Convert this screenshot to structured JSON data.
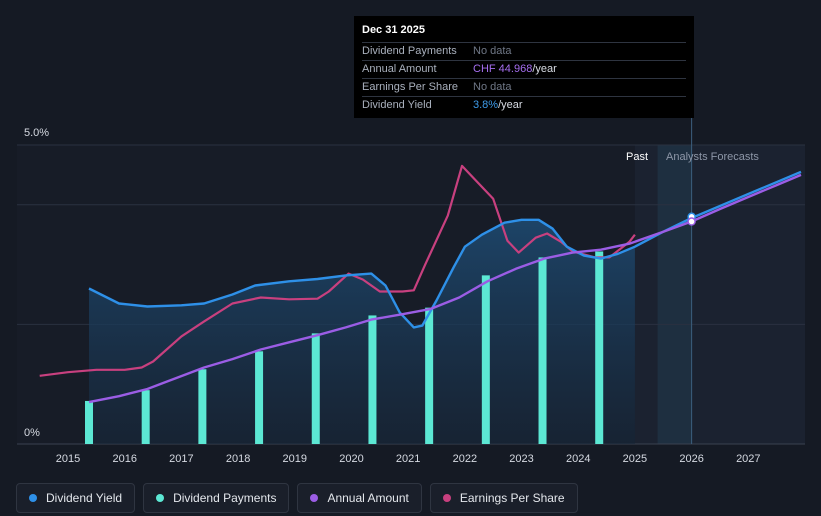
{
  "chart_data": {
    "type": "line",
    "y_top_label": "5.0%",
    "y_bottom_label": "0%",
    "x_ticks": [
      "2015",
      "2016",
      "2017",
      "2018",
      "2019",
      "2020",
      "2021",
      "2022",
      "2023",
      "2024",
      "2025",
      "2026",
      "2027"
    ],
    "past_label": "Past",
    "forecast_label": "Analysts Forecasts",
    "colors": {
      "dividend_yield": "#2e90e8",
      "dividend_payments": "#5ce8d4",
      "annual_amount": "#9b5de5",
      "earnings_per_share": "#c8407f"
    },
    "dividend_yield": [
      [
        2015.37,
        2.6
      ],
      [
        2015.9,
        2.35
      ],
      [
        2016.4,
        2.3
      ],
      [
        2017.0,
        2.32
      ],
      [
        2017.4,
        2.35
      ],
      [
        2017.9,
        2.5
      ],
      [
        2018.3,
        2.65
      ],
      [
        2018.9,
        2.72
      ],
      [
        2019.4,
        2.76
      ],
      [
        2019.9,
        2.82
      ],
      [
        2020.35,
        2.85
      ],
      [
        2020.6,
        2.65
      ],
      [
        2020.85,
        2.2
      ],
      [
        2021.1,
        1.95
      ],
      [
        2021.25,
        1.98
      ],
      [
        2021.5,
        2.4
      ],
      [
        2021.8,
        2.95
      ],
      [
        2022.0,
        3.3
      ],
      [
        2022.3,
        3.5
      ],
      [
        2022.7,
        3.7
      ],
      [
        2023.0,
        3.75
      ],
      [
        2023.3,
        3.75
      ],
      [
        2023.55,
        3.6
      ],
      [
        2023.8,
        3.3
      ],
      [
        2024.1,
        3.15
      ],
      [
        2024.4,
        3.1
      ],
      [
        2024.7,
        3.18
      ],
      [
        2025.0,
        3.3
      ],
      [
        2025.5,
        3.55
      ],
      [
        2026.0,
        3.78
      ],
      [
        2026.5,
        3.98
      ],
      [
        2027.0,
        4.18
      ],
      [
        2027.5,
        4.38
      ],
      [
        2027.93,
        4.55
      ]
    ],
    "dividend_payments": [
      {
        "x": 2015.37,
        "y": 0.72
      },
      {
        "x": 2016.37,
        "y": 0.9
      },
      {
        "x": 2017.37,
        "y": 1.25
      },
      {
        "x": 2018.37,
        "y": 1.55
      },
      {
        "x": 2019.37,
        "y": 1.85
      },
      {
        "x": 2020.37,
        "y": 2.15
      },
      {
        "x": 2021.37,
        "y": 2.28
      },
      {
        "x": 2022.37,
        "y": 2.82
      },
      {
        "x": 2023.37,
        "y": 3.12
      },
      {
        "x": 2024.37,
        "y": 3.22
      }
    ],
    "annual_amount": [
      [
        2015.37,
        0.7
      ],
      [
        2015.9,
        0.8
      ],
      [
        2016.4,
        0.92
      ],
      [
        2016.9,
        1.1
      ],
      [
        2017.4,
        1.28
      ],
      [
        2017.9,
        1.42
      ],
      [
        2018.4,
        1.58
      ],
      [
        2018.9,
        1.7
      ],
      [
        2019.4,
        1.82
      ],
      [
        2019.9,
        1.95
      ],
      [
        2020.35,
        2.08
      ],
      [
        2020.9,
        2.17
      ],
      [
        2021.4,
        2.26
      ],
      [
        2021.9,
        2.45
      ],
      [
        2022.4,
        2.72
      ],
      [
        2022.9,
        2.93
      ],
      [
        2023.4,
        3.1
      ],
      [
        2023.9,
        3.2
      ],
      [
        2024.4,
        3.25
      ],
      [
        2024.9,
        3.35
      ],
      [
        2025.5,
        3.55
      ],
      [
        2026.0,
        3.72
      ],
      [
        2026.5,
        3.93
      ],
      [
        2027.0,
        4.13
      ],
      [
        2027.5,
        4.33
      ],
      [
        2027.93,
        4.5
      ]
    ],
    "earnings_per_share": [
      [
        2014.5,
        1.14
      ],
      [
        2015.0,
        1.2
      ],
      [
        2015.5,
        1.24
      ],
      [
        2016.0,
        1.24
      ],
      [
        2016.3,
        1.28
      ],
      [
        2016.5,
        1.38
      ],
      [
        2017.0,
        1.8
      ],
      [
        2017.4,
        2.05
      ],
      [
        2017.9,
        2.35
      ],
      [
        2018.4,
        2.45
      ],
      [
        2018.9,
        2.42
      ],
      [
        2019.4,
        2.43
      ],
      [
        2019.6,
        2.55
      ],
      [
        2019.95,
        2.85
      ],
      [
        2020.2,
        2.75
      ],
      [
        2020.5,
        2.55
      ],
      [
        2020.9,
        2.55
      ],
      [
        2021.1,
        2.57
      ],
      [
        2021.3,
        3.0
      ],
      [
        2021.7,
        3.82
      ],
      [
        2021.95,
        4.65
      ],
      [
        2022.2,
        4.4
      ],
      [
        2022.5,
        4.1
      ],
      [
        2022.75,
        3.4
      ],
      [
        2022.95,
        3.2
      ],
      [
        2023.25,
        3.45
      ],
      [
        2023.45,
        3.52
      ],
      [
        2023.7,
        3.38
      ],
      [
        2023.9,
        3.22
      ],
      [
        2024.3,
        3.12
      ],
      [
        2024.55,
        3.12
      ],
      [
        2024.9,
        3.38
      ],
      [
        2025.0,
        3.5
      ]
    ],
    "tooltip_point": {
      "x": 2026.0,
      "yield": 3.8,
      "annual": 3.72
    },
    "xlim": [
      2014.1,
      2028.0
    ],
    "ylim": [
      0,
      5.0
    ],
    "past_end": 2025.0,
    "forecast_band": [
      2025.4,
      2026.0
    ]
  },
  "tooltip": {
    "date": "Dec 31 2025",
    "rows": [
      {
        "label": "Dividend Payments",
        "value": "No data",
        "unit": ""
      },
      {
        "label": "Annual Amount",
        "value": "CHF 44.968",
        "unit": "/year"
      },
      {
        "label": "Earnings Per Share",
        "value": "No data",
        "unit": ""
      },
      {
        "label": "Dividend Yield",
        "value": "3.8%",
        "unit": "/year"
      }
    ],
    "value_colors": [
      "#6f7786",
      "#a56ef0",
      "#6f7786",
      "#3d9be9"
    ]
  },
  "legend": [
    {
      "label": "Dividend Yield",
      "color": "#2e90e8"
    },
    {
      "label": "Dividend Payments",
      "color": "#5ce8d4"
    },
    {
      "label": "Annual Amount",
      "color": "#9b5de5"
    },
    {
      "label": "Earnings Per Share",
      "color": "#c8407f"
    }
  ]
}
